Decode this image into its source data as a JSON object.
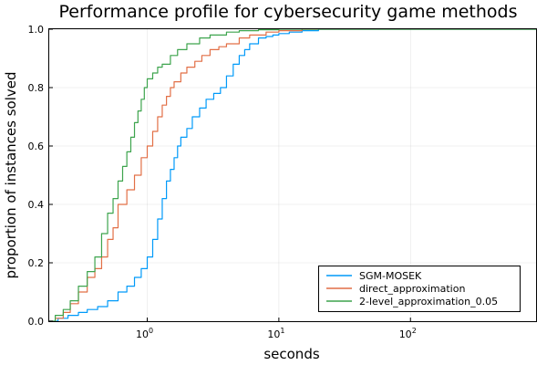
{
  "chart_data": {
    "type": "line",
    "step": true,
    "title": "Performance profile for cybersecurity game methods",
    "xlabel": "seconds",
    "ylabel": "proportion of instances solved",
    "xscale": "log10",
    "xlim": [
      0.18,
      900
    ],
    "ylim": [
      0,
      1
    ],
    "grid": true,
    "legend_position": "bottom-right",
    "x_ticks": [
      {
        "base": "10",
        "exp": "0",
        "value": 1
      },
      {
        "base": "10",
        "exp": "1",
        "value": 10
      },
      {
        "base": "10",
        "exp": "2",
        "value": 100
      }
    ],
    "y_ticks": [
      {
        "label": "0.0",
        "value": 0.0
      },
      {
        "label": "0.2",
        "value": 0.2
      },
      {
        "label": "0.4",
        "value": 0.4
      },
      {
        "label": "0.6",
        "value": 0.6
      },
      {
        "label": "0.8",
        "value": 0.8
      },
      {
        "label": "1.0",
        "value": 1.0
      }
    ],
    "series": [
      {
        "name": "SGM-MOSEK",
        "color": "#009af9",
        "x": [
          0.18,
          0.21,
          0.25,
          0.3,
          0.35,
          0.42,
          0.5,
          0.6,
          0.7,
          0.8,
          0.9,
          1.0,
          1.1,
          1.2,
          1.3,
          1.4,
          1.5,
          1.6,
          1.7,
          1.8,
          2.0,
          2.2,
          2.5,
          2.8,
          3.2,
          3.6,
          4.0,
          4.5,
          5.0,
          5.5,
          6.0,
          7.0,
          8.0,
          9.0,
          10.0,
          12.0,
          15.0,
          20.0,
          30.0,
          50.0,
          100.0,
          900.0
        ],
        "y": [
          0.0,
          0.01,
          0.02,
          0.03,
          0.04,
          0.05,
          0.07,
          0.1,
          0.12,
          0.15,
          0.18,
          0.22,
          0.28,
          0.35,
          0.42,
          0.48,
          0.52,
          0.56,
          0.6,
          0.63,
          0.66,
          0.7,
          0.73,
          0.76,
          0.78,
          0.8,
          0.84,
          0.88,
          0.91,
          0.93,
          0.95,
          0.97,
          0.975,
          0.98,
          0.985,
          0.99,
          0.995,
          1.0,
          1.0,
          1.0,
          1.0,
          1.0
        ]
      },
      {
        "name": "direct_approximation",
        "color": "#e26f46",
        "x": [
          0.18,
          0.2,
          0.23,
          0.26,
          0.3,
          0.35,
          0.4,
          0.45,
          0.5,
          0.55,
          0.6,
          0.7,
          0.8,
          0.9,
          1.0,
          1.1,
          1.2,
          1.3,
          1.4,
          1.5,
          1.6,
          1.8,
          2.0,
          2.3,
          2.6,
          3.0,
          3.5,
          4.0,
          5.0,
          6.0,
          8.0,
          10.0,
          15.0,
          20.0,
          900.0
        ],
        "y": [
          0.0,
          0.01,
          0.03,
          0.06,
          0.1,
          0.15,
          0.18,
          0.22,
          0.28,
          0.32,
          0.4,
          0.45,
          0.5,
          0.56,
          0.6,
          0.65,
          0.7,
          0.74,
          0.77,
          0.8,
          0.82,
          0.85,
          0.87,
          0.89,
          0.91,
          0.93,
          0.94,
          0.95,
          0.97,
          0.98,
          0.99,
          0.995,
          1.0,
          1.0,
          1.0
        ]
      },
      {
        "name": "2-level_approximation_0.05",
        "color": "#3da44d",
        "x": [
          0.18,
          0.2,
          0.23,
          0.26,
          0.3,
          0.35,
          0.4,
          0.45,
          0.5,
          0.55,
          0.6,
          0.65,
          0.7,
          0.75,
          0.8,
          0.85,
          0.9,
          0.95,
          1.0,
          1.1,
          1.2,
          1.3,
          1.5,
          1.7,
          2.0,
          2.5,
          3.0,
          4.0,
          5.0,
          7.0,
          10.0,
          15.0,
          20.0,
          900.0
        ],
        "y": [
          0.0,
          0.02,
          0.04,
          0.07,
          0.12,
          0.17,
          0.22,
          0.3,
          0.37,
          0.42,
          0.48,
          0.53,
          0.58,
          0.63,
          0.68,
          0.72,
          0.76,
          0.8,
          0.83,
          0.85,
          0.87,
          0.88,
          0.91,
          0.93,
          0.95,
          0.97,
          0.98,
          0.99,
          0.995,
          0.998,
          1.0,
          1.0,
          1.0,
          1.0
        ]
      }
    ]
  }
}
